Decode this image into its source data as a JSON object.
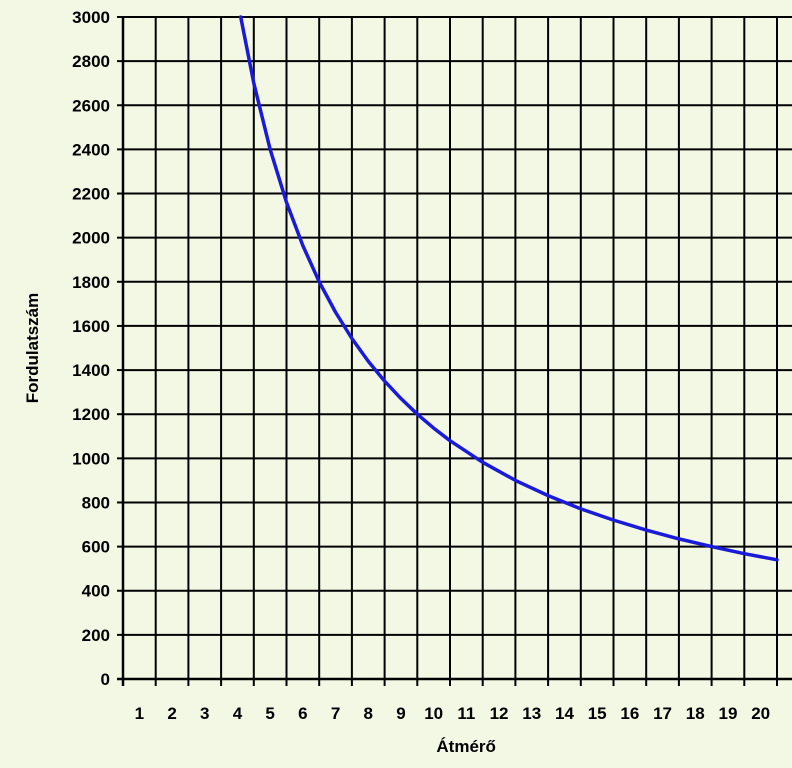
{
  "chart_data": {
    "type": "line",
    "title": "",
    "xlabel": "Átmérő",
    "ylabel": "Fordulatszám",
    "xlim": [
      0,
      20.5
    ],
    "ylim": [
      0,
      3000
    ],
    "x_ticks": [
      1,
      2,
      3,
      4,
      5,
      6,
      7,
      8,
      9,
      10,
      11,
      12,
      13,
      14,
      15,
      16,
      17,
      18,
      19,
      20
    ],
    "y_ticks": [
      0,
      200,
      400,
      600,
      800,
      1000,
      1200,
      1400,
      1600,
      1800,
      2000,
      2200,
      2400,
      2600,
      2800,
      3000
    ],
    "grid": true,
    "colors": {
      "background": "#f2f8e4",
      "grid": "#000000",
      "line": "#1a1adb"
    },
    "series": [
      {
        "x": [
          3.6,
          4,
          4.5,
          5,
          5.5,
          6,
          6.5,
          7,
          7.5,
          8,
          8.5,
          9,
          9.5,
          10,
          11,
          12,
          13,
          14,
          15,
          16,
          17,
          18,
          19,
          20
        ],
        "y": [
          3000,
          2700,
          2400,
          2160,
          1964,
          1800,
          1662,
          1543,
          1440,
          1350,
          1271,
          1200,
          1137,
          1080,
          982,
          900,
          831,
          771,
          720,
          675,
          635,
          600,
          568,
          540
        ]
      }
    ]
  }
}
